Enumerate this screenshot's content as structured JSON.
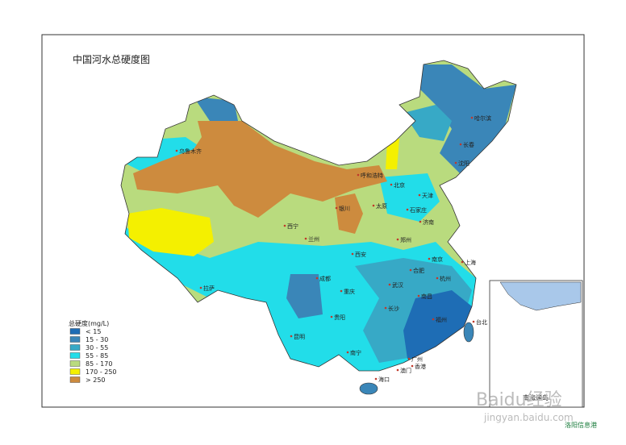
{
  "title": "中国河水总硬度图",
  "legend": {
    "title": "总硬度(mg/L)",
    "items": [
      {
        "label": "< 15",
        "color": "#1e6db5"
      },
      {
        "label": "15 - 30",
        "color": "#3a86b8"
      },
      {
        "label": "30 - 55",
        "color": "#37a9c6"
      },
      {
        "label": "55 - 85",
        "color": "#22dde9"
      },
      {
        "label": "85 - 170",
        "color": "#b9db7e"
      },
      {
        "label": "170 - 250",
        "color": "#f4f000"
      },
      {
        "label": "> 250",
        "color": "#cd8b3e"
      }
    ]
  },
  "cities": [
    "乌鲁木齐",
    "呼和浩特",
    "北京",
    "天津",
    "石家庄",
    "太原",
    "银川",
    "西宁",
    "兰州",
    "西安",
    "郑州",
    "济南",
    "南京",
    "上海",
    "合肥",
    "杭州",
    "武汉",
    "长沙",
    "南昌",
    "福州",
    "台北",
    "广州",
    "香港",
    "澳门",
    "南宁",
    "海口",
    "贵阳",
    "昆明",
    "成都",
    "重庆",
    "拉萨",
    "哈尔滨",
    "长春",
    "沈阳"
  ],
  "inset": {
    "label": "南海诸岛"
  },
  "watermark": {
    "brand": "Baidu经验",
    "url": "jingyan.baidu.com",
    "logo": "洛阳信息港"
  }
}
